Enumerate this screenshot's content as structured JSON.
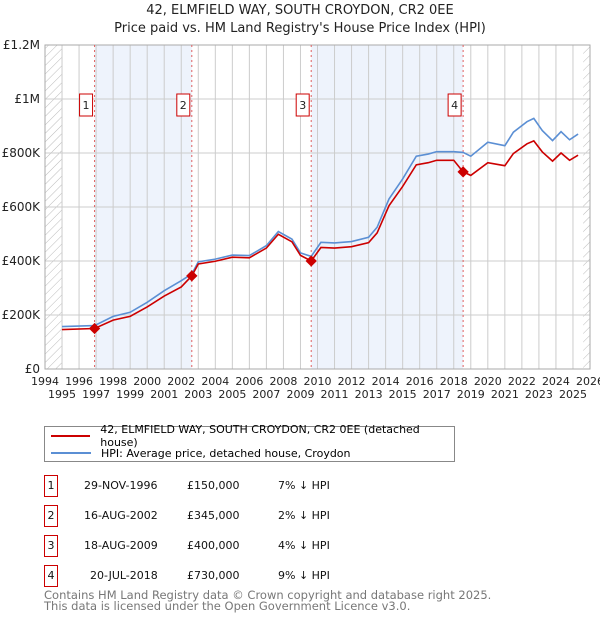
{
  "title": "42, ELMFIELD WAY, SOUTH CROYDON, CR2 0EE",
  "subtitle": "Price paid vs. HM Land Registry's House Price Index (HPI)",
  "chart_data": {
    "type": "line",
    "title": "42, ELMFIELD WAY, SOUTH CROYDON, CR2 0EE",
    "subtitle": "Price paid vs. HM Land Registry's House Price Index (HPI)",
    "xlim": [
      1994,
      2026
    ],
    "ylim": [
      0,
      1200000
    ],
    "x_ticks": [
      "1994",
      "1995",
      "1996",
      "1997",
      "1998",
      "1999",
      "2000",
      "2001",
      "2002",
      "2003",
      "2004",
      "2005",
      "2006",
      "2007",
      "2008",
      "2009",
      "2010",
      "2011",
      "2012",
      "2013",
      "2014",
      "2015",
      "2016",
      "2017",
      "2018",
      "2019",
      "2020",
      "2021",
      "2022",
      "2023",
      "2024",
      "2025",
      "2026"
    ],
    "y_ticks": [
      {
        "v": 0,
        "label": "£0"
      },
      {
        "v": 200000,
        "label": "£200K"
      },
      {
        "v": 400000,
        "label": "£400K"
      },
      {
        "v": 600000,
        "label": "£600K"
      },
      {
        "v": 800000,
        "label": "£800K"
      },
      {
        "v": 1000000,
        "label": "£1M"
      },
      {
        "v": 1200000,
        "label": "£1.2M"
      }
    ],
    "grid": true,
    "legend_placement": "below",
    "series": [
      {
        "name": "42, ELMFIELD WAY, SOUTH CROYDON, CR2 0EE (detached house)",
        "color": "#cc0000",
        "x": [
          1995,
          1996.91,
          1998,
          1999,
          2000,
          2001,
          2002,
          2002.62,
          2003,
          2004,
          2005,
          2006,
          2007,
          2007.7,
          2008.5,
          2009,
          2009.63,
          2010.2,
          2011,
          2012,
          2013,
          2013.5,
          2014.2,
          2015,
          2015.8,
          2016.5,
          2017,
          2018,
          2018.55,
          2019,
          2020,
          2021,
          2021.5,
          2022.3,
          2022.7,
          2023.2,
          2023.8,
          2024.3,
          2024.8,
          2025.3
        ],
        "y": [
          146000,
          150000,
          181000,
          195000,
          230000,
          270000,
          304000,
          345000,
          389000,
          399000,
          414000,
          412000,
          448000,
          499000,
          471000,
          421000,
          400000,
          450000,
          448000,
          453000,
          468000,
          504000,
          605000,
          676000,
          756000,
          764000,
          773000,
          773000,
          730000,
          717000,
          764000,
          753000,
          798000,
          834000,
          845000,
          804000,
          770000,
          800000,
          773000,
          792000
        ]
      },
      {
        "name": "HPI: Average price, detached house, Croydon",
        "color": "#5b8fd4",
        "x": [
          1995,
          1996.91,
          1998,
          1999,
          2000,
          2001,
          2002,
          2002.62,
          2003,
          2004,
          2005,
          2006,
          2007,
          2007.7,
          2008.5,
          2009,
          2009.63,
          2010.2,
          2011,
          2012,
          2013,
          2013.5,
          2014.2,
          2015,
          2015.8,
          2016.5,
          2017,
          2018,
          2018.55,
          2019,
          2020,
          2021,
          2021.5,
          2022.3,
          2022.7,
          2023.2,
          2023.8,
          2024.3,
          2024.8,
          2025.3
        ],
        "y": [
          157000,
          161000,
          195000,
          210000,
          247000,
          290000,
          327000,
          352000,
          397000,
          407000,
          422000,
          420000,
          457000,
          509000,
          481000,
          430000,
          417000,
          469000,
          467000,
          472000,
          488000,
          525000,
          630000,
          704000,
          788000,
          796000,
          805000,
          805000,
          802000,
          788000,
          840000,
          827000,
          877000,
          916000,
          928000,
          883000,
          846000,
          879000,
          849000,
          870000
        ]
      }
    ],
    "sales": [
      {
        "n": "1",
        "x": 1996.91,
        "y": 150000,
        "date": "29-NOV-1996",
        "price": "£150,000",
        "delta": "7% ↓ HPI"
      },
      {
        "n": "2",
        "x": 2002.62,
        "y": 345000,
        "date": "16-AUG-2002",
        "price": "£345,000",
        "delta": "2% ↓ HPI"
      },
      {
        "n": "3",
        "x": 2009.63,
        "y": 400000,
        "date": "18-AUG-2009",
        "price": "£400,000",
        "delta": "4% ↓ HPI"
      },
      {
        "n": "4",
        "x": 2018.55,
        "y": 730000,
        "date": "20-JUL-2018",
        "price": "£730,000",
        "delta": "9% ↓ HPI"
      }
    ],
    "shaded_ranges": [
      [
        1996.91,
        2002.62
      ],
      [
        2009.63,
        2018.55
      ]
    ],
    "hatched_ranges": [
      [
        1994,
        1995
      ],
      [
        2025.6,
        2026
      ]
    ]
  },
  "legend": {
    "red": "42, ELMFIELD WAY, SOUTH CROYDON, CR2 0EE (detached house)",
    "blue": "HPI: Average price, detached house, Croydon"
  },
  "footer": {
    "line1": "Contains HM Land Registry data © Crown copyright and database right 2025.",
    "line2": "This data is licensed under the Open Government Licence v3.0."
  }
}
